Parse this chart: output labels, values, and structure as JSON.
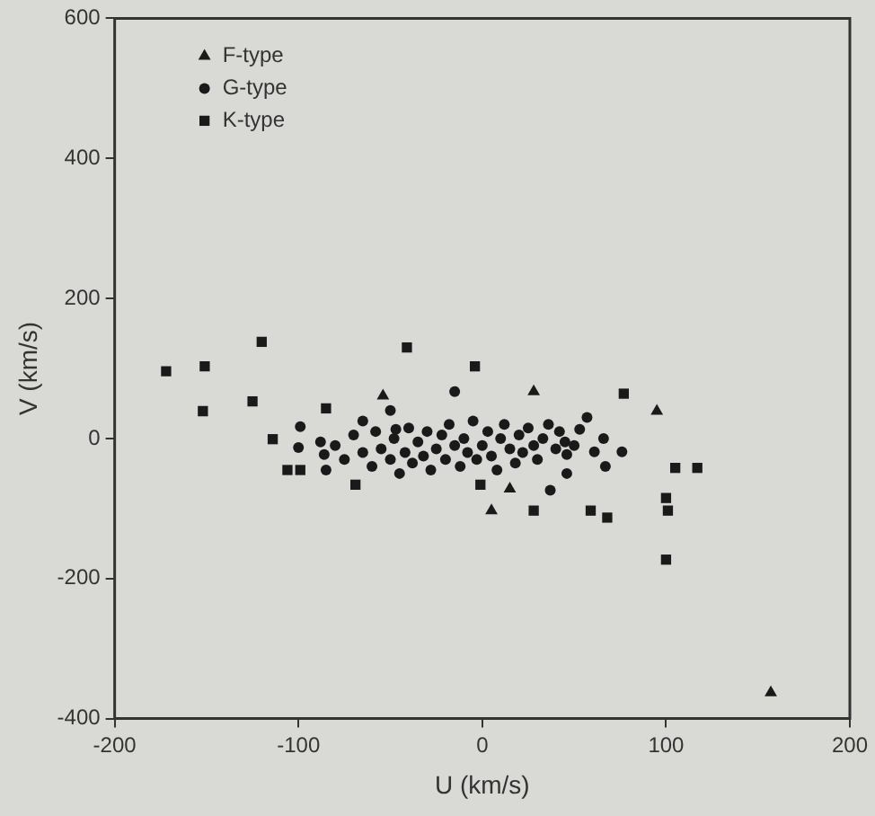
{
  "chart_data": {
    "type": "scatter",
    "xlabel": "U (km/s)",
    "ylabel": "V (km/s)",
    "xlim": [
      -200,
      200
    ],
    "ylim": [
      -400,
      600
    ],
    "xticks": [
      -200,
      -100,
      0,
      100,
      200
    ],
    "yticks": [
      -400,
      -200,
      0,
      200,
      400,
      600
    ],
    "grid": false,
    "legend": "top left",
    "series": [
      {
        "name": "F-type",
        "color": "#1a1a1a",
        "marker": "triangle",
        "x": [
          157,
          95,
          -54,
          28,
          5,
          15
        ],
        "values": [
          -363,
          39,
          61,
          67,
          -103,
          -72
        ]
      },
      {
        "name": "G-type",
        "color": "#1a1a1a",
        "marker": "circle",
        "x": [
          -50,
          -47,
          -99,
          -100,
          -86,
          -85,
          -15,
          57,
          53,
          66,
          76,
          46,
          61,
          67,
          46,
          37,
          -80,
          -75,
          -70,
          -65,
          -60,
          -58,
          -55,
          -50,
          -48,
          -45,
          -42,
          -40,
          -38,
          -35,
          -32,
          -30,
          -28,
          -25,
          -22,
          -20,
          -18,
          -15,
          -12,
          -10,
          -8,
          -5,
          -3,
          0,
          3,
          5,
          8,
          10,
          12,
          15,
          18,
          20,
          22,
          25,
          28,
          30,
          33,
          36,
          40,
          42,
          45,
          50,
          -65,
          -88
        ],
        "values": [
          40,
          13,
          17,
          -13,
          -23,
          -45,
          67,
          30,
          13,
          0,
          -19,
          -23,
          -19,
          -40,
          -50,
          -74,
          -10,
          -30,
          5,
          -20,
          -40,
          10,
          -15,
          -30,
          0,
          -50,
          -20,
          15,
          -35,
          -5,
          -25,
          10,
          -45,
          -15,
          5,
          -30,
          20,
          -10,
          -40,
          0,
          -20,
          25,
          -30,
          -10,
          10,
          -25,
          -45,
          0,
          20,
          -15,
          -35,
          5,
          -20,
          15,
          -10,
          -30,
          0,
          20,
          -15,
          10,
          -5,
          -10,
          25,
          -5
        ]
      },
      {
        "name": "K-type",
        "color": "#1a1a1a",
        "marker": "square",
        "x": [
          -172,
          -151,
          -120,
          -152,
          -125,
          -85,
          -41,
          -4,
          77,
          105,
          117,
          100,
          101,
          100,
          59,
          68,
          -114,
          -106,
          -99,
          -69,
          28,
          -1
        ],
        "values": [
          96,
          103,
          138,
          39,
          53,
          43,
          130,
          103,
          64,
          -42,
          -42,
          -85,
          -103,
          -173,
          -103,
          -113,
          -1,
          -45,
          -45,
          -66,
          -103,
          -66
        ]
      }
    ]
  }
}
